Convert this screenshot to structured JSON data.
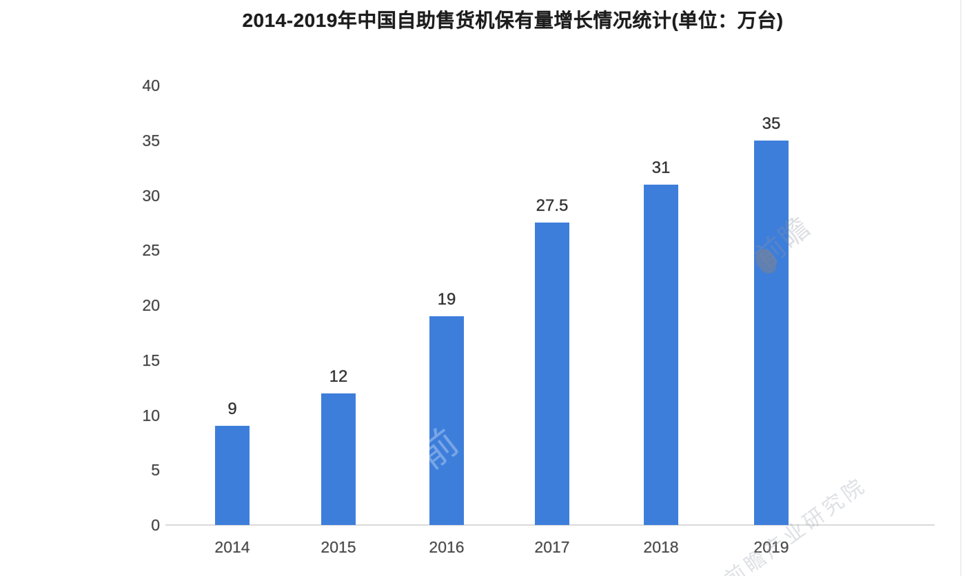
{
  "title": "2014-2019年中国自助售货机保有量增长情况统计(单位：万台)",
  "chart_data": {
    "type": "bar",
    "title": "2014-2019年中国自助售货机保有量增长情况统计(单位：万台)",
    "categories": [
      "2014",
      "2015",
      "2016",
      "2017",
      "2018",
      "2019"
    ],
    "values": [
      9,
      12,
      19,
      27.5,
      31,
      35
    ],
    "value_labels": [
      "9",
      "12",
      "19",
      "27.5",
      "31",
      "35"
    ],
    "xlabel": "",
    "ylabel": "",
    "unit": "万台",
    "ylim": [
      0,
      40
    ],
    "yticks": [
      0,
      5,
      10,
      15,
      20,
      25,
      30,
      35,
      40
    ],
    "bar_color": "#3e7edb",
    "grid": false,
    "legend_position": "none"
  },
  "watermarks": {
    "logo_text": "前瞻",
    "bar_mark": "前",
    "bottom_text": "前瞻产业研究院"
  }
}
